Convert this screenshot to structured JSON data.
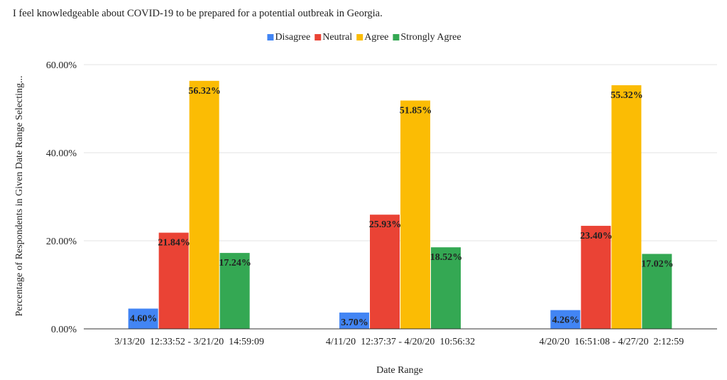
{
  "chart_data": {
    "type": "bar",
    "title": "I feel knowledgeable about COVID-19 to be prepared for a potential outbreak in Georgia.",
    "xlabel": "Date Range",
    "ylabel": "Percentage of Respondents in Given Date Range Selecting...",
    "categories": [
      "3/13/20  12:33:52 - 3/21/20  14:59:09",
      "4/11/20  12:37:37 - 4/20/20  10:56:32",
      "4/20/20  16:51:08 - 4/27/20  2:12:59"
    ],
    "series": [
      {
        "name": "Disagree",
        "color": "#4285f4",
        "values": [
          4.6,
          3.7,
          4.26
        ],
        "labels": [
          "4.60%",
          "3.70%",
          "4.26%"
        ]
      },
      {
        "name": "Neutral",
        "color": "#ea4335",
        "values": [
          21.84,
          25.93,
          23.4
        ],
        "labels": [
          "21.84%",
          "25.93%",
          "23.40%"
        ]
      },
      {
        "name": "Agree",
        "color": "#fbbc04",
        "values": [
          56.32,
          51.85,
          55.32
        ],
        "labels": [
          "56.32%",
          "51.85%",
          "55.32%"
        ]
      },
      {
        "name": "Strongly Agree",
        "color": "#34a853",
        "values": [
          17.24,
          18.52,
          17.02
        ],
        "labels": [
          "17.24%",
          "18.52%",
          "17.02%"
        ]
      }
    ],
    "ylim": [
      0,
      60
    ],
    "yticks": [
      0,
      20,
      40,
      60
    ],
    "ytick_labels": [
      "0.00%",
      "20.00%",
      "40.00%",
      "60.00%"
    ],
    "grid": true,
    "legend_position": "top-center"
  }
}
